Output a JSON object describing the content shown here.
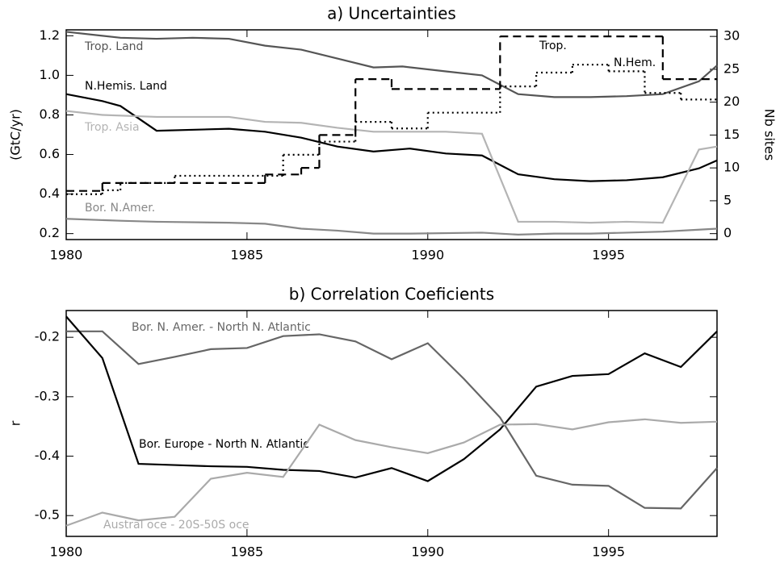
{
  "chart_data": [
    {
      "type": "line",
      "title": "a) Uncertainties",
      "ylabel": "(GtC/yr)",
      "y2label": "Nb sites",
      "xlim": [
        1980,
        1998
      ],
      "xticks": [
        1980,
        1985,
        1990,
        1995
      ],
      "ylim": [
        0.17,
        1.23
      ],
      "yticks": [
        0.2,
        0.4,
        0.6,
        0.8,
        {
          "value": 1,
          "label": "1.0"
        },
        1.2
      ],
      "y2lim": [
        -0.9,
        31
      ],
      "y2ticks": [
        0,
        5,
        10,
        15,
        20,
        25,
        30
      ],
      "series": [
        {
          "name": "Trop. Land",
          "color": "#555555",
          "linestyle": "solid",
          "x": [
            1980,
            1981.5,
            1982.5,
            1983.5,
            1984.5,
            1985.5,
            1986.5,
            1987.5,
            1988.5,
            1989.3,
            1990.5,
            1991.5,
            1992.5,
            1993.5,
            1994.5,
            1995.5,
            1996.5,
            1997.5,
            1998
          ],
          "values": [
            1.22,
            1.19,
            1.185,
            1.19,
            1.185,
            1.15,
            1.13,
            1.085,
            1.04,
            1.045,
            1.02,
            1.0,
            0.905,
            0.89,
            0.89,
            0.895,
            0.905,
            0.97,
            1.05
          ]
        },
        {
          "name": "N.Hemis. Land",
          "color": "#000000",
          "linestyle": "solid",
          "x": [
            1980,
            1981,
            1981.5,
            1982.5,
            1984.5,
            1985.5,
            1986.5,
            1987.5,
            1988.5,
            1989.5,
            1990.5,
            1991.5,
            1992.5,
            1993.5,
            1994.5,
            1995.5,
            1996.5,
            1997.5,
            1998
          ],
          "values": [
            0.905,
            0.87,
            0.845,
            0.72,
            0.73,
            0.715,
            0.685,
            0.64,
            0.615,
            0.63,
            0.605,
            0.595,
            0.5,
            0.475,
            0.465,
            0.47,
            0.485,
            0.53,
            0.57
          ]
        },
        {
          "name": "Trop. Asia",
          "color": "#b4b4b4",
          "linestyle": "solid",
          "x": [
            1980,
            1981,
            1982.5,
            1984.5,
            1985.5,
            1986.5,
            1987.5,
            1988.5,
            1990.5,
            1991.5,
            1992.5,
            1993.5,
            1994.5,
            1995.5,
            1996.5,
            1997.5,
            1998
          ],
          "values": [
            0.82,
            0.8,
            0.79,
            0.79,
            0.765,
            0.76,
            0.735,
            0.715,
            0.715,
            0.705,
            0.26,
            0.26,
            0.255,
            0.26,
            0.255,
            0.625,
            0.64
          ]
        },
        {
          "name": "Bor. N.Amer.",
          "color": "#888888",
          "linestyle": "solid",
          "x": [
            1980,
            1981.5,
            1982.5,
            1984.5,
            1985.5,
            1986.5,
            1987.5,
            1988.5,
            1989.5,
            1991.5,
            1992.5,
            1993.5,
            1994.5,
            1995.5,
            1996.5,
            1997.5,
            1998
          ],
          "values": [
            0.275,
            0.265,
            0.26,
            0.255,
            0.25,
            0.225,
            0.215,
            0.2,
            0.2,
            0.205,
            0.195,
            0.2,
            0.2,
            0.205,
            0.21,
            0.22,
            0.225
          ]
        },
        {
          "name": "Trop.",
          "color": "#000000",
          "linestyle": "dashed",
          "axis": "y2",
          "drawstyle": "steps-post",
          "x": [
            1980,
            1981,
            1985.5,
            1986.5,
            1987,
            1988,
            1989,
            1992,
            1996.5
          ],
          "values": [
            6.5,
            7.7,
            9,
            10,
            15,
            23.5,
            22,
            30,
            23.5
          ]
        },
        {
          "name": "N.Hem.",
          "color": "#000000",
          "linestyle": "dotted",
          "axis": "y2",
          "drawstyle": "steps-post",
          "x": [
            1980,
            1981,
            1981.5,
            1983,
            1986,
            1987,
            1988,
            1989,
            1990,
            1992,
            1993,
            1994,
            1995,
            1996,
            1997
          ],
          "values": [
            6,
            6.6,
            7.7,
            8.8,
            12,
            14,
            17,
            16,
            18.4,
            22.4,
            24.5,
            25.7,
            24.7,
            21.4,
            20.4
          ]
        }
      ]
    },
    {
      "type": "line",
      "title": "b) Correlation Coeficients",
      "ylabel": "r",
      "xlim": [
        1980,
        1998
      ],
      "xticks": [
        1980,
        1985,
        1990,
        1995
      ],
      "ylim": [
        -0.535,
        -0.155
      ],
      "yticks": [
        -0.5,
        -0.4,
        -0.3,
        -0.2
      ],
      "x": [
        1980,
        1981,
        1982,
        1983,
        1984,
        1985,
        1986,
        1987,
        1988,
        1989,
        1990,
        1991,
        1992,
        1993,
        1994,
        1995,
        1996,
        1997,
        1998
      ],
      "series": [
        {
          "name": "Bor. N. Amer. - North N. Atlantic",
          "color": "#666666",
          "linestyle": "solid",
          "values": [
            -0.19,
            -0.19,
            -0.245,
            -0.233,
            -0.22,
            -0.218,
            -0.198,
            -0.195,
            -0.207,
            -0.237,
            -0.21,
            -0.27,
            -0.335,
            -0.433,
            -0.448,
            -0.45,
            -0.487,
            -0.488,
            -0.42
          ]
        },
        {
          "name": "Bor. Europe - North N. Atlantic",
          "color": "#000000",
          "linestyle": "solid",
          "values": [
            -0.165,
            -0.235,
            -0.413,
            -0.415,
            -0.417,
            -0.418,
            -0.423,
            -0.425,
            -0.436,
            -0.42,
            -0.442,
            -0.405,
            -0.355,
            -0.283,
            -0.265,
            -0.262,
            -0.227,
            -0.25,
            -0.19
          ]
        },
        {
          "name": "Austral oce - 20S-50S oce",
          "color": "#aaaaaa",
          "linestyle": "solid",
          "values": [
            -0.517,
            -0.495,
            -0.508,
            -0.502,
            -0.438,
            -0.428,
            -0.435,
            -0.347,
            -0.373,
            -0.385,
            -0.395,
            -0.377,
            -0.347,
            -0.346,
            -0.355,
            -0.343,
            -0.338,
            -0.344,
            -0.342
          ]
        }
      ]
    }
  ]
}
